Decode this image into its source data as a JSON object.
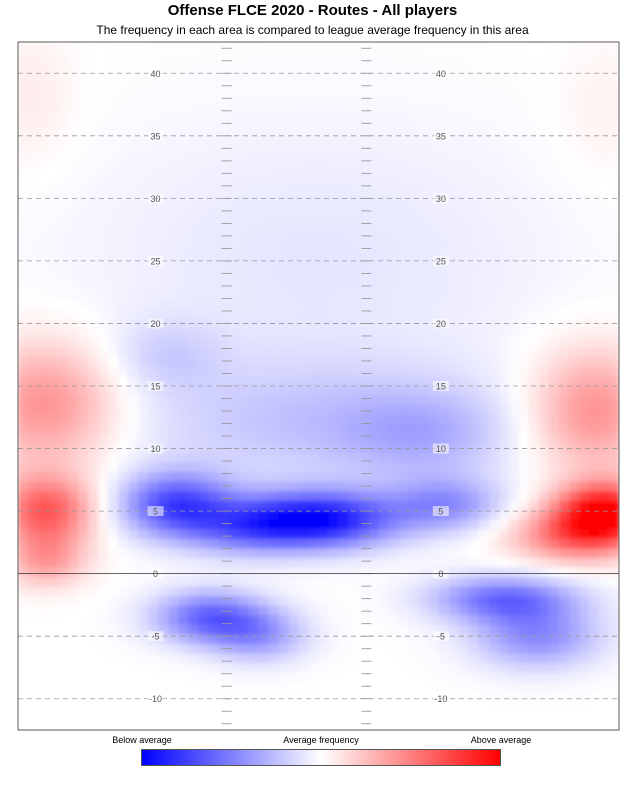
{
  "chart_data": {
    "type": "heatmap",
    "title": "Offense FLCE 2020 - Routes - All players",
    "subtitle": "The frequency in each area is compared to league average frequency in this area",
    "y_range": [
      -12.5,
      42.5
    ],
    "yard_lines": [
      -10,
      -5,
      0,
      5,
      10,
      15,
      20,
      25,
      30,
      35,
      40
    ],
    "yard_line_labels": [
      "-10",
      "-5",
      "0",
      "5",
      "10",
      "15",
      "20",
      "25",
      "30",
      "35",
      "40"
    ],
    "line_of_scrimmage": 0,
    "x_range": [
      0,
      53.3
    ],
    "hash_marks_x": [
      18.5,
      30.9
    ],
    "number_positions_x": [
      12.2,
      37.5
    ],
    "legend": {
      "low_label": "Below average",
      "mid_label": "Average frequency",
      "high_label": "Above average",
      "low_color": "#0000ff",
      "mid_color": "#ffffff",
      "high_color": "#ff0000"
    },
    "hotspots": [
      {
        "x": 26.5,
        "y": 4.3,
        "sx": 5.0,
        "sy": 1.6,
        "value": -0.95
      },
      {
        "x": 14.0,
        "y": 5.5,
        "sx": 3.5,
        "sy": 1.8,
        "value": -0.7
      },
      {
        "x": 38.0,
        "y": 5.5,
        "sx": 3.5,
        "sy": 1.5,
        "value": -0.4
      },
      {
        "x": 20.0,
        "y": 3.5,
        "sx": 4.0,
        "sy": 1.5,
        "value": -0.35
      },
      {
        "x": 17.0,
        "y": -3.5,
        "sx": 3.5,
        "sy": 1.5,
        "value": -0.6
      },
      {
        "x": 21.5,
        "y": -5.0,
        "sx": 3.0,
        "sy": 1.5,
        "value": -0.35
      },
      {
        "x": 43.0,
        "y": -2.0,
        "sx": 4.5,
        "sy": 1.3,
        "value": -0.55
      },
      {
        "x": 46.0,
        "y": -5.0,
        "sx": 4.0,
        "sy": 1.8,
        "value": -0.45
      },
      {
        "x": 26.5,
        "y": 12.0,
        "sx": 12.0,
        "sy": 3.5,
        "value": -0.22
      },
      {
        "x": 36.0,
        "y": 11.0,
        "sx": 5.0,
        "sy": 2.5,
        "value": -0.2
      },
      {
        "x": 26.5,
        "y": 25.0,
        "sx": 15.0,
        "sy": 8.0,
        "value": -0.1
      },
      {
        "x": 13.0,
        "y": 17.5,
        "sx": 3.5,
        "sy": 2.0,
        "value": -0.15
      },
      {
        "x": 2.5,
        "y": 5.0,
        "sx": 3.0,
        "sy": 2.0,
        "value": 0.65
      },
      {
        "x": 2.5,
        "y": 13.5,
        "sx": 4.5,
        "sy": 3.5,
        "value": 0.45
      },
      {
        "x": 2.5,
        "y": 1.0,
        "sx": 2.5,
        "sy": 1.5,
        "value": 0.35
      },
      {
        "x": 52.0,
        "y": 5.0,
        "sx": 3.0,
        "sy": 1.6,
        "value": 0.95
      },
      {
        "x": 49.5,
        "y": 3.0,
        "sx": 4.0,
        "sy": 1.5,
        "value": 0.55
      },
      {
        "x": 51.0,
        "y": 13.0,
        "sx": 4.0,
        "sy": 3.5,
        "value": 0.45
      },
      {
        "x": 1.0,
        "y": 38.0,
        "sx": 3.0,
        "sy": 4.0,
        "value": 0.08
      },
      {
        "x": 52.0,
        "y": 37.0,
        "sx": 3.0,
        "sy": 4.0,
        "value": 0.06
      }
    ]
  }
}
